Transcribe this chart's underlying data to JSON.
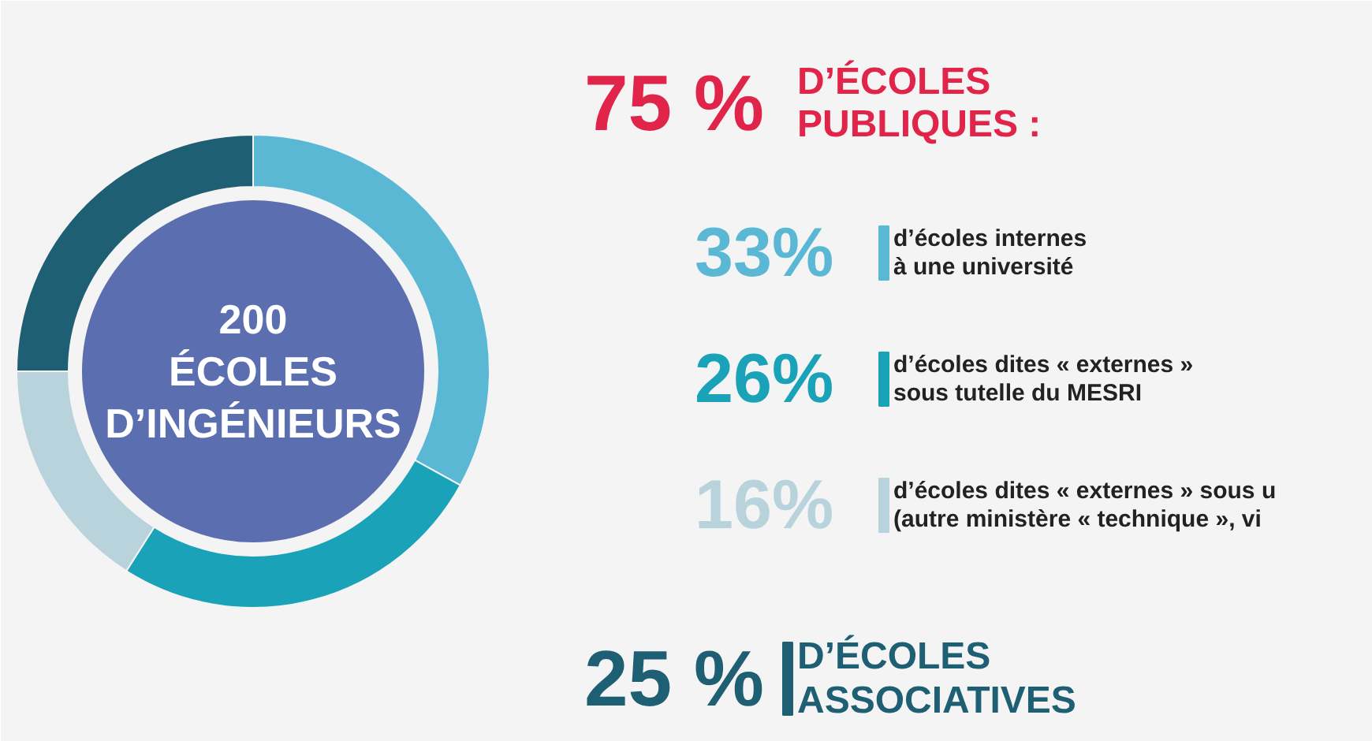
{
  "chart_data": {
    "type": "donut",
    "title": "200\nÉCOLES\nD’INGÉNIEURS",
    "categories": [
      "d’écoles internes\nà une université",
      "d’écoles dites « externes »\nsous tutelle du MESRI",
      "d’écoles dites « externes » sous u\n(autre ministère « technique », vi",
      "D’ÉCOLES\nASSOCIATIVES"
    ],
    "values": [
      33,
      26,
      16,
      25
    ],
    "value_labels": [
      "33%",
      "26%",
      "16%",
      "25 %"
    ],
    "colors": [
      "#5bb8d4",
      "#1aa3b8",
      "#b9d3dc",
      "#1f5f73"
    ],
    "legend": "right",
    "annotations": [
      "75 %",
      "D’ÉCOLES\nPUBLIQUES :"
    ]
  }
}
